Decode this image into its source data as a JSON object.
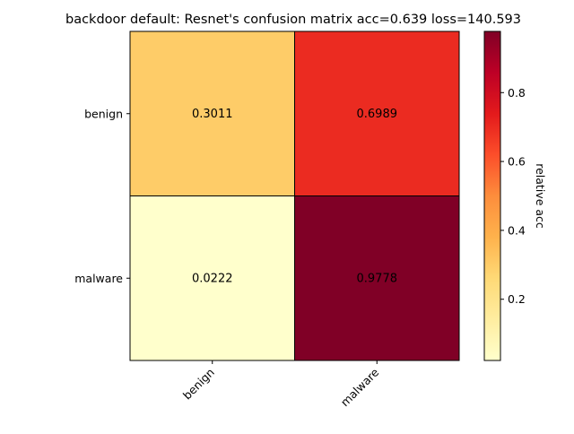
{
  "chart_data": {
    "type": "heatmap",
    "title": "backdoor default: Resnet's confusion matrix acc=0.639 loss=140.593",
    "x_categories": [
      "benign",
      "malware"
    ],
    "y_categories": [
      "benign",
      "malware"
    ],
    "values": [
      [
        0.3011,
        0.6989
      ],
      [
        0.0222,
        0.9778
      ]
    ],
    "cell_labels": [
      [
        "0.3011",
        "0.6989"
      ],
      [
        "0.0222",
        "0.9778"
      ]
    ],
    "colorbar": {
      "label": "relative acc",
      "colormap": "YlOrRd",
      "range": [
        0.0222,
        0.9778
      ],
      "ticks": [
        0.2,
        0.4,
        0.6,
        0.8
      ],
      "tick_labels": [
        "0.2",
        "0.4",
        "0.6",
        "0.8"
      ]
    },
    "xlabel": "",
    "ylabel": "",
    "grid": false
  }
}
